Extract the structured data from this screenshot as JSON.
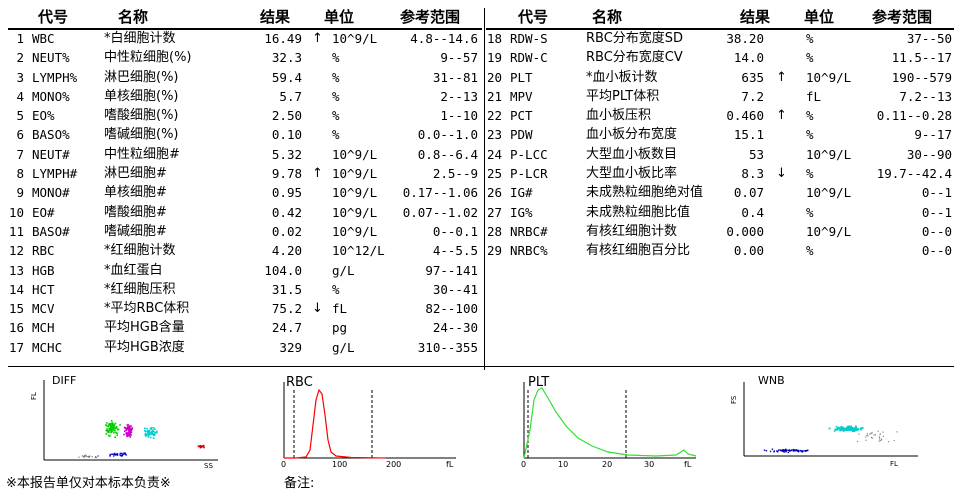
{
  "headers": {
    "code": "代号",
    "name": "名称",
    "result": "结果",
    "unit": "单位",
    "reference": "参考范围"
  },
  "left_rows": [
    {
      "no": "1",
      "code": "WBC",
      "name": "*白细胞计数",
      "result": "16.49",
      "flag": "↑",
      "unit": "10^9/L",
      "ref": "4.8--14.6"
    },
    {
      "no": "2",
      "code": "NEUT%",
      "name": "中性粒细胞(%)",
      "result": "32.3",
      "flag": "",
      "unit": "%",
      "ref": "9--57"
    },
    {
      "no": "3",
      "code": "LYMPH%",
      "name": "淋巴细胞(%)",
      "result": "59.4",
      "flag": "",
      "unit": "%",
      "ref": "31--81"
    },
    {
      "no": "4",
      "code": "MONO%",
      "name": "单核细胞(%)",
      "result": "5.7",
      "flag": "",
      "unit": "%",
      "ref": "2--13"
    },
    {
      "no": "5",
      "code": "EO%",
      "name": "嗜酸细胞(%)",
      "result": "2.50",
      "flag": "",
      "unit": "%",
      "ref": "1--10"
    },
    {
      "no": "6",
      "code": "BASO%",
      "name": "嗜碱细胞(%)",
      "result": "0.10",
      "flag": "",
      "unit": "%",
      "ref": "0.0--1.0"
    },
    {
      "no": "7",
      "code": "NEUT#",
      "name": "中性粒细胞#",
      "result": "5.32",
      "flag": "",
      "unit": "10^9/L",
      "ref": "0.8--6.4"
    },
    {
      "no": "8",
      "code": "LYMPH#",
      "name": "淋巴细胞#",
      "result": "9.78",
      "flag": "↑",
      "unit": "10^9/L",
      "ref": "2.5--9"
    },
    {
      "no": "9",
      "code": "MONO#",
      "name": "单核细胞#",
      "result": "0.95",
      "flag": "",
      "unit": "10^9/L",
      "ref": "0.17--1.06"
    },
    {
      "no": "10",
      "code": "EO#",
      "name": "嗜酸细胞#",
      "result": "0.42",
      "flag": "",
      "unit": "10^9/L",
      "ref": "0.07--1.02"
    },
    {
      "no": "11",
      "code": "BASO#",
      "name": "嗜碱细胞#",
      "result": "0.02",
      "flag": "",
      "unit": "10^9/L",
      "ref": "0--0.1"
    },
    {
      "no": "12",
      "code": "RBC",
      "name": "*红细胞计数",
      "result": "4.20",
      "flag": "",
      "unit": "10^12/L",
      "ref": "4--5.5"
    },
    {
      "no": "13",
      "code": "HGB",
      "name": "*血红蛋白",
      "result": "104.0",
      "flag": "",
      "unit": "g/L",
      "ref": "97--141"
    },
    {
      "no": "14",
      "code": "HCT",
      "name": "*红细胞压积",
      "result": "31.5",
      "flag": "",
      "unit": "%",
      "ref": "30--41"
    },
    {
      "no": "15",
      "code": "MCV",
      "name": "*平均RBC体积",
      "result": "75.2",
      "flag": "↓",
      "unit": "fL",
      "ref": "82--100"
    },
    {
      "no": "16",
      "code": "MCH",
      "name": "平均HGB含量",
      "result": "24.7",
      "flag": "",
      "unit": "pg",
      "ref": "24--30"
    },
    {
      "no": "17",
      "code": "MCHC",
      "name": "平均HGB浓度",
      "result": "329",
      "flag": "",
      "unit": "g/L",
      "ref": "310--355"
    }
  ],
  "right_rows": [
    {
      "no": "18",
      "code": "RDW-S",
      "name": "RBC分布宽度SD",
      "result": "38.20",
      "flag": "",
      "unit": "%",
      "ref": "37--50"
    },
    {
      "no": "19",
      "code": "RDW-C",
      "name": "RBC分布宽度CV",
      "result": "14.0",
      "flag": "",
      "unit": "%",
      "ref": "11.5--17"
    },
    {
      "no": "20",
      "code": "PLT",
      "name": "*血小板计数",
      "result": "635",
      "flag": "↑",
      "unit": "10^9/L",
      "ref": "190--579"
    },
    {
      "no": "21",
      "code": "MPV",
      "name": "平均PLT体积",
      "result": "7.2",
      "flag": "",
      "unit": "fL",
      "ref": "7.2--13"
    },
    {
      "no": "22",
      "code": "PCT",
      "name": "血小板压积",
      "result": "0.460",
      "flag": "↑",
      "unit": "%",
      "ref": "0.11--0.28"
    },
    {
      "no": "23",
      "code": "PDW",
      "name": "血小板分布宽度",
      "result": "15.1",
      "flag": "",
      "unit": "%",
      "ref": "9--17"
    },
    {
      "no": "24",
      "code": "P-LCC",
      "name": "大型血小板数目",
      "result": "53",
      "flag": "",
      "unit": "10^9/L",
      "ref": "30--90"
    },
    {
      "no": "25",
      "code": "P-LCR",
      "name": "大型血小板比率",
      "result": "8.3",
      "flag": "↓",
      "unit": "%",
      "ref": "19.7--42.4"
    },
    {
      "no": "26",
      "code": "IG#",
      "name": "未成熟粒细胞绝对值",
      "result": "0.07",
      "flag": "",
      "unit": "10^9/L",
      "ref": "0--1"
    },
    {
      "no": "27",
      "code": "IG%",
      "name": "未成熟粒细胞比值",
      "result": "0.4",
      "flag": "",
      "unit": "%",
      "ref": "0--1"
    },
    {
      "no": "28",
      "code": "NRBC#",
      "name": "有核红细胞计数",
      "result": "0.000",
      "flag": "",
      "unit": "10^9/L",
      "ref": "0--0"
    },
    {
      "no": "29",
      "code": "NRBC%",
      "name": "有核红细胞百分比",
      "result": "0.00",
      "flag": "",
      "unit": "%",
      "ref": "0--0"
    }
  ],
  "graphs": {
    "diff": {
      "title": "DIFF",
      "y_label": "FL",
      "x_label": "SS"
    },
    "rbc": {
      "title": "RBC",
      "ticks": [
        "0",
        "100",
        "200"
      ],
      "unit": "fL",
      "color": "#ff0000"
    },
    "plt": {
      "title": "PLT",
      "ticks": [
        "0",
        "10",
        "20",
        "30"
      ],
      "unit": "fL",
      "color": "#33dd33"
    },
    "wnb": {
      "title": "WNB",
      "y_label": "FS",
      "x_label": "FL"
    }
  },
  "footer": {
    "disclaimer": "※本报告单仅对本标本负责※",
    "remark": "备注:"
  }
}
